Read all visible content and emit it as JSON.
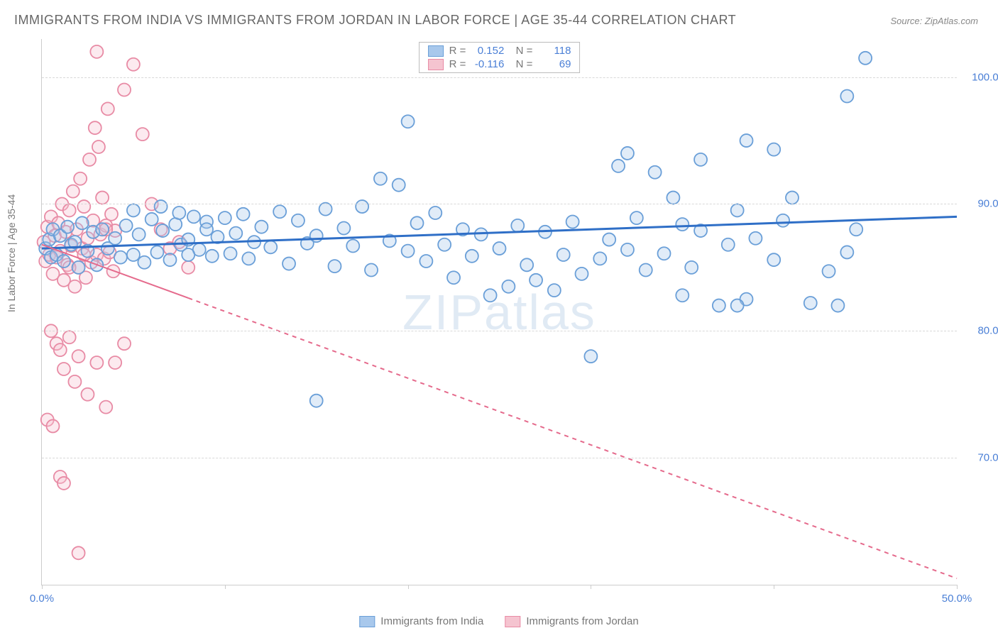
{
  "title": "IMMIGRANTS FROM INDIA VS IMMIGRANTS FROM JORDAN IN LABOR FORCE | AGE 35-44 CORRELATION CHART",
  "source": "Source: ZipAtlas.com",
  "ylabel": "In Labor Force | Age 35-44",
  "watermark_a": "ZIP",
  "watermark_b": "atlas",
  "chart": {
    "type": "scatter",
    "xlim": [
      0,
      50
    ],
    "ylim": [
      60,
      103
    ],
    "yticks": [
      70,
      80,
      90,
      100
    ],
    "ytick_labels": [
      "70.0%",
      "80.0%",
      "90.0%",
      "100.0%"
    ],
    "xticks": [
      0,
      10,
      20,
      30,
      40,
      50
    ],
    "xtick_labels": [
      "0.0%",
      "",
      "",
      "",
      "",
      "50.0%"
    ],
    "grid_color": "#d8d8d8",
    "background_color": "#ffffff",
    "axis_color": "#cccccc",
    "marker_radius": 9,
    "marker_stroke_width": 1.8,
    "fill_opacity": 0.35,
    "series": [
      {
        "name": "Immigrants from India",
        "color_fill": "#a8c8ec",
        "color_stroke": "#6a9fd8",
        "R": "0.152",
        "N": "118",
        "trend": {
          "x1": 0,
          "y1": 86.5,
          "x2": 50,
          "y2": 89.0,
          "color": "#2f6fc7",
          "width": 3,
          "dash": "none"
        },
        "points": [
          [
            0.2,
            86.5
          ],
          [
            0.4,
            87.2
          ],
          [
            0.5,
            85.8
          ],
          [
            0.6,
            88.0
          ],
          [
            0.8,
            86.0
          ],
          [
            1.0,
            87.5
          ],
          [
            1.2,
            85.5
          ],
          [
            1.4,
            88.2
          ],
          [
            1.6,
            86.8
          ],
          [
            1.8,
            87.0
          ],
          [
            2.0,
            85.0
          ],
          [
            2.2,
            88.5
          ],
          [
            2.5,
            86.3
          ],
          [
            2.8,
            87.8
          ],
          [
            3.0,
            85.2
          ],
          [
            3.3,
            88.0
          ],
          [
            3.6,
            86.5
          ],
          [
            4.0,
            87.3
          ],
          [
            4.3,
            85.8
          ],
          [
            4.6,
            88.3
          ],
          [
            5.0,
            86.0
          ],
          [
            5.3,
            87.6
          ],
          [
            5.6,
            85.4
          ],
          [
            6.0,
            88.8
          ],
          [
            6.3,
            86.2
          ],
          [
            6.6,
            87.9
          ],
          [
            7.0,
            85.6
          ],
          [
            7.3,
            88.4
          ],
          [
            7.6,
            86.8
          ],
          [
            8.0,
            87.2
          ],
          [
            8.3,
            89.0
          ],
          [
            8.6,
            86.4
          ],
          [
            9.0,
            88.6
          ],
          [
            9.3,
            85.9
          ],
          [
            9.6,
            87.4
          ],
          [
            10.0,
            88.9
          ],
          [
            10.3,
            86.1
          ],
          [
            10.6,
            87.7
          ],
          [
            11.0,
            89.2
          ],
          [
            11.3,
            85.7
          ],
          [
            11.6,
            87.0
          ],
          [
            12.0,
            88.2
          ],
          [
            12.5,
            86.6
          ],
          [
            13.0,
            89.4
          ],
          [
            13.5,
            85.3
          ],
          [
            14.0,
            88.7
          ],
          [
            14.5,
            86.9
          ],
          [
            15.0,
            87.5
          ],
          [
            15.5,
            89.6
          ],
          [
            16.0,
            85.1
          ],
          [
            16.5,
            88.1
          ],
          [
            17.0,
            86.7
          ],
          [
            17.5,
            89.8
          ],
          [
            18.0,
            84.8
          ],
          [
            18.5,
            92.0
          ],
          [
            19.0,
            87.1
          ],
          [
            19.5,
            91.5
          ],
          [
            20.0,
            86.3
          ],
          [
            20.5,
            88.5
          ],
          [
            21.0,
            85.5
          ],
          [
            21.5,
            89.3
          ],
          [
            22.0,
            86.8
          ],
          [
            22.5,
            84.2
          ],
          [
            23.0,
            88.0
          ],
          [
            23.5,
            85.9
          ],
          [
            24.0,
            87.6
          ],
          [
            24.5,
            82.8
          ],
          [
            25.0,
            86.5
          ],
          [
            25.5,
            83.5
          ],
          [
            26.0,
            88.3
          ],
          [
            26.5,
            85.2
          ],
          [
            27.0,
            84.0
          ],
          [
            27.5,
            87.8
          ],
          [
            28.0,
            83.2
          ],
          [
            28.5,
            86.0
          ],
          [
            29.0,
            88.6
          ],
          [
            29.5,
            84.5
          ],
          [
            30.0,
            78.0
          ],
          [
            30.5,
            85.7
          ],
          [
            31.0,
            87.2
          ],
          [
            31.5,
            93.0
          ],
          [
            32.0,
            86.4
          ],
          [
            32.5,
            88.9
          ],
          [
            33.0,
            84.8
          ],
          [
            33.5,
            92.5
          ],
          [
            34.0,
            86.1
          ],
          [
            35.0,
            88.4
          ],
          [
            35.5,
            85.0
          ],
          [
            36.0,
            87.9
          ],
          [
            37.0,
            82.0
          ],
          [
            37.5,
            86.8
          ],
          [
            38.0,
            89.5
          ],
          [
            38.5,
            82.5
          ],
          [
            39.0,
            87.3
          ],
          [
            40.0,
            85.6
          ],
          [
            40.5,
            88.7
          ],
          [
            41.0,
            90.5
          ],
          [
            42.0,
            82.2
          ],
          [
            43.0,
            84.7
          ],
          [
            44.0,
            86.2
          ],
          [
            15.0,
            74.5
          ],
          [
            35.0,
            82.8
          ],
          [
            32.0,
            94.0
          ],
          [
            36.0,
            93.5
          ],
          [
            38.0,
            82.0
          ],
          [
            34.5,
            90.5
          ],
          [
            43.5,
            82.0
          ],
          [
            44.0,
            98.5
          ],
          [
            44.5,
            88.0
          ],
          [
            45.0,
            101.5
          ],
          [
            38.5,
            95.0
          ],
          [
            40.0,
            94.3
          ],
          [
            20.0,
            96.5
          ],
          [
            5.0,
            89.5
          ],
          [
            6.5,
            89.8
          ],
          [
            7.5,
            89.3
          ],
          [
            8.0,
            86.0
          ],
          [
            9.0,
            88.0
          ]
        ]
      },
      {
        "name": "Immigrants from Jordan",
        "color_fill": "#f5c4d0",
        "color_stroke": "#e88ba5",
        "R": "-0.116",
        "N": "69",
        "trend": {
          "x1": 0,
          "y1": 86.8,
          "x2": 50,
          "y2": 60.5,
          "color": "#e56a8c",
          "width": 2,
          "dash": "6,6",
          "solid_until_x": 8
        },
        "points": [
          [
            0.1,
            87.0
          ],
          [
            0.2,
            85.5
          ],
          [
            0.3,
            88.2
          ],
          [
            0.4,
            86.0
          ],
          [
            0.5,
            89.0
          ],
          [
            0.6,
            84.5
          ],
          [
            0.7,
            87.5
          ],
          [
            0.8,
            85.8
          ],
          [
            0.9,
            88.5
          ],
          [
            1.0,
            86.3
          ],
          [
            1.1,
            90.0
          ],
          [
            1.2,
            84.0
          ],
          [
            1.3,
            87.8
          ],
          [
            1.4,
            85.2
          ],
          [
            1.5,
            89.5
          ],
          [
            1.6,
            86.7
          ],
          [
            1.7,
            91.0
          ],
          [
            1.8,
            83.5
          ],
          [
            1.9,
            88.0
          ],
          [
            2.0,
            85.0
          ],
          [
            2.1,
            92.0
          ],
          [
            2.2,
            86.5
          ],
          [
            2.3,
            89.8
          ],
          [
            2.4,
            84.2
          ],
          [
            2.5,
            87.3
          ],
          [
            2.6,
            93.5
          ],
          [
            2.7,
            85.4
          ],
          [
            2.8,
            88.7
          ],
          [
            2.9,
            96.0
          ],
          [
            3.0,
            86.0
          ],
          [
            3.1,
            94.5
          ],
          [
            3.2,
            87.6
          ],
          [
            3.3,
            90.5
          ],
          [
            3.4,
            85.7
          ],
          [
            3.5,
            88.3
          ],
          [
            3.6,
            97.5
          ],
          [
            3.7,
            86.2
          ],
          [
            3.8,
            89.2
          ],
          [
            3.9,
            84.7
          ],
          [
            4.0,
            87.9
          ],
          [
            0.5,
            80.0
          ],
          [
            0.8,
            79.0
          ],
          [
            1.0,
            78.5
          ],
          [
            1.2,
            77.0
          ],
          [
            1.5,
            79.5
          ],
          [
            1.8,
            76.0
          ],
          [
            2.0,
            78.0
          ],
          [
            2.5,
            75.0
          ],
          [
            3.0,
            77.5
          ],
          [
            3.5,
            74.0
          ],
          [
            0.3,
            73.0
          ],
          [
            0.6,
            72.5
          ],
          [
            5.0,
            101.0
          ],
          [
            4.5,
            99.0
          ],
          [
            5.5,
            95.5
          ],
          [
            6.0,
            90.0
          ],
          [
            6.5,
            88.0
          ],
          [
            7.0,
            86.5
          ],
          [
            7.5,
            87.0
          ],
          [
            8.0,
            85.0
          ],
          [
            1.0,
            68.5
          ],
          [
            1.2,
            68.0
          ],
          [
            4.0,
            77.5
          ],
          [
            4.5,
            79.0
          ],
          [
            1.5,
            85.0
          ],
          [
            2.3,
            86.0
          ],
          [
            3.0,
            102.0
          ],
          [
            2.0,
            62.5
          ],
          [
            3.5,
            88.0
          ]
        ]
      }
    ]
  },
  "legend_bottom": [
    {
      "name": "Immigrants from India",
      "fill": "#a8c8ec",
      "stroke": "#6a9fd8"
    },
    {
      "name": "Immigrants from Jordan",
      "fill": "#f5c4d0",
      "stroke": "#e88ba5"
    }
  ]
}
